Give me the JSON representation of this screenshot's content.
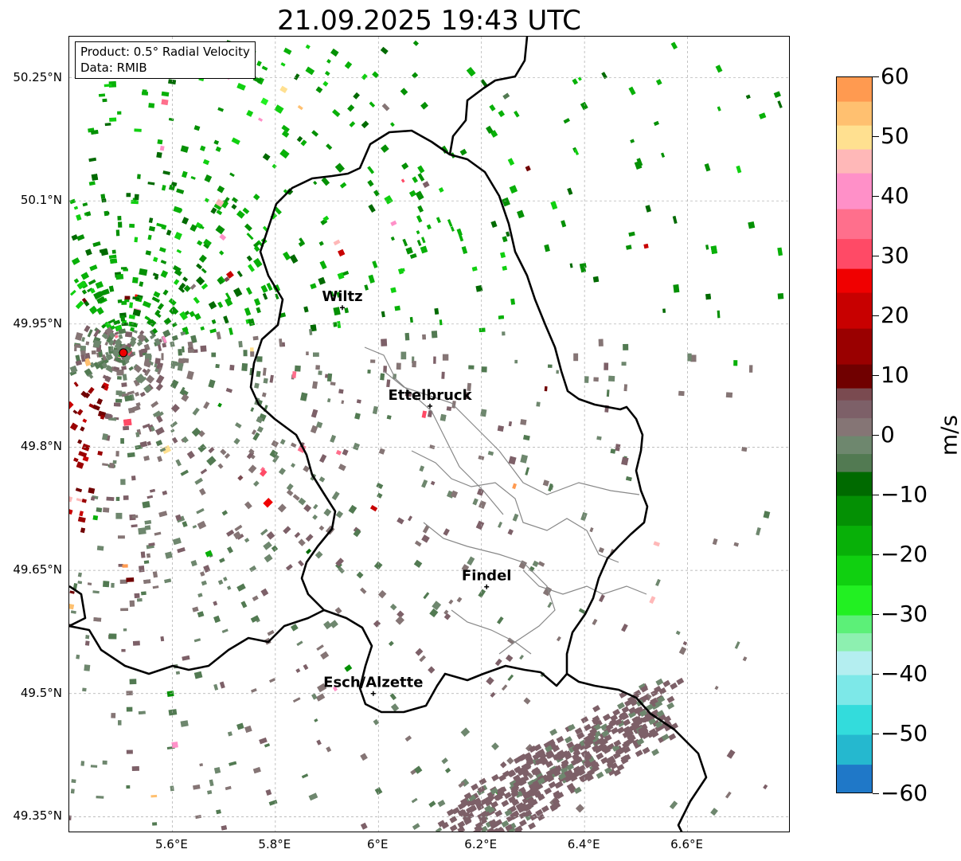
{
  "title": "21.09.2025 19:43 UTC",
  "info": {
    "product": "Product: 0.5° Radial Velocity",
    "source": "Data: RMIB"
  },
  "axes": {
    "lat_ticks": [
      {
        "value": 50.25,
        "label": "50.25°N"
      },
      {
        "value": 50.1,
        "label": "50.1°N"
      },
      {
        "value": 49.95,
        "label": "49.95°N"
      },
      {
        "value": 49.8,
        "label": "49.8°N"
      },
      {
        "value": 49.65,
        "label": "49.65°N"
      },
      {
        "value": 49.5,
        "label": "49.5°N"
      },
      {
        "value": 49.35,
        "label": "49.35°N"
      }
    ],
    "lon_ticks": [
      {
        "value": 5.6,
        "label": "5.6°E"
      },
      {
        "value": 5.8,
        "label": "5.8°E"
      },
      {
        "value": 6.0,
        "label": "6°E"
      },
      {
        "value": 6.2,
        "label": "6.2°E"
      },
      {
        "value": 6.4,
        "label": "6.4°E"
      },
      {
        "value": 6.6,
        "label": "6.6°E"
      }
    ],
    "lon_range": [
      5.4,
      6.8
    ],
    "lat_range": [
      49.33,
      50.3
    ],
    "grid": true
  },
  "places": [
    {
      "name": "Wiltz",
      "lon": 5.93,
      "lat": 49.97
    },
    {
      "name": "Ettelbruck",
      "lon": 6.1,
      "lat": 49.85
    },
    {
      "name": "Findel",
      "lon": 6.21,
      "lat": 49.63
    },
    {
      "name": "Esch/Alzette",
      "lon": 5.99,
      "lat": 49.5
    }
  ],
  "radar_site": {
    "lon": 5.505,
    "lat": 49.915
  },
  "colorbar": {
    "min": -60,
    "max": 60,
    "units": "m/s",
    "ticks": [
      {
        "value": 60,
        "label": "60"
      },
      {
        "value": 50,
        "label": "50"
      },
      {
        "value": 40,
        "label": "40"
      },
      {
        "value": 30,
        "label": "30"
      },
      {
        "value": 20,
        "label": "20"
      },
      {
        "value": 10,
        "label": "10"
      },
      {
        "value": 0,
        "label": "0"
      },
      {
        "value": -10,
        "label": "−10"
      },
      {
        "value": -20,
        "label": "−20"
      },
      {
        "value": -30,
        "label": "−30"
      },
      {
        "value": -40,
        "label": "−40"
      },
      {
        "value": -50,
        "label": "−50"
      },
      {
        "value": -60,
        "label": "−60"
      }
    ],
    "stops": [
      {
        "from": -60,
        "to": -55,
        "color": "#1f78c8"
      },
      {
        "from": -55,
        "to": -50,
        "color": "#25b8cf"
      },
      {
        "from": -50,
        "to": -45,
        "color": "#33dcdc"
      },
      {
        "from": -45,
        "to": -40,
        "color": "#7de8e8"
      },
      {
        "from": -40,
        "to": -36,
        "color": "#b4eef0"
      },
      {
        "from": -36,
        "to": -33,
        "color": "#8df0b0"
      },
      {
        "from": -33,
        "to": -30,
        "color": "#5cf078"
      },
      {
        "from": -30,
        "to": -25,
        "color": "#22f022"
      },
      {
        "from": -25,
        "to": -20,
        "color": "#10d010"
      },
      {
        "from": -20,
        "to": -15,
        "color": "#08b008"
      },
      {
        "from": -15,
        "to": -10,
        "color": "#049004"
      },
      {
        "from": -10,
        "to": -6,
        "color": "#006a00"
      },
      {
        "from": -6,
        "to": -3,
        "color": "#527a52"
      },
      {
        "from": -3,
        "to": 0,
        "color": "#6e876e"
      },
      {
        "from": 0,
        "to": 3,
        "color": "#857575"
      },
      {
        "from": 3,
        "to": 6,
        "color": "#7d6068"
      },
      {
        "from": 6,
        "to": 8,
        "color": "#7a4a50"
      },
      {
        "from": 8,
        "to": 12,
        "color": "#700000"
      },
      {
        "from": 12,
        "to": 18,
        "color": "#9a0000"
      },
      {
        "from": 18,
        "to": 24,
        "color": "#c80000"
      },
      {
        "from": 24,
        "to": 28,
        "color": "#f00000"
      },
      {
        "from": 28,
        "to": 33,
        "color": "#ff4a66"
      },
      {
        "from": 33,
        "to": 38,
        "color": "#ff6f8c"
      },
      {
        "from": 38,
        "to": 44,
        "color": "#ff90c8"
      },
      {
        "from": 44,
        "to": 48,
        "color": "#ffb8b8"
      },
      {
        "from": 48,
        "to": 52,
        "color": "#ffe090"
      },
      {
        "from": 52,
        "to": 56,
        "color": "#ffc070"
      },
      {
        "from": 56,
        "to": 60,
        "color": "#ff9a50"
      }
    ]
  }
}
